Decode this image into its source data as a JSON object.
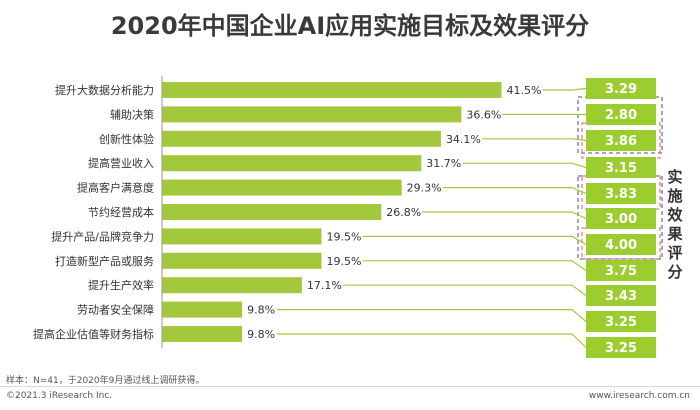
{
  "title": "2020年中国企业AI应用实施目标及效果评分",
  "side_label": "实施效果评分",
  "note": "样本：N=41，于2020年9月通过线上调研获得。",
  "copyright": "©2021.3 iResearch Inc.",
  "website": "www.iresearch.com.cn",
  "colors": {
    "bar": "#a4c83c",
    "score_box": "#9ccd2e",
    "score_text": "#ffffff",
    "dashed_gray": "#777777",
    "dashed_pink": "#e87aa0"
  },
  "chart_data": {
    "type": "bar",
    "orientation": "horizontal",
    "categories": [
      "提升大数据分析能力",
      "辅助决策",
      "创新性体验",
      "提高营业收入",
      "提高客户满意度",
      "节约经营成本",
      "提升产品/品牌竞争力",
      "打造新型产品或服务",
      "提升生产效率",
      "劳动者安全保障",
      "提高企业估值等财务指标"
    ],
    "series": [
      {
        "values": [
          41.5,
          36.6,
          34.1,
          31.7,
          29.3,
          26.8,
          19.5,
          19.5,
          17.1,
          9.8,
          9.8
        ],
        "value_labels": [
          "41.5%",
          "36.6%",
          "34.1%",
          "31.7%",
          "29.3%",
          "26.8%",
          "19.5%",
          "19.5%",
          "17.1%",
          "9.8%",
          "9.8%"
        ]
      }
    ],
    "scores": [
      "3.29",
      "2.80",
      "3.86",
      "3.15",
      "3.83",
      "3.00",
      "4.00",
      "3.75",
      "3.43",
      "3.25",
      "3.25"
    ],
    "xlim": [
      0,
      50
    ]
  }
}
